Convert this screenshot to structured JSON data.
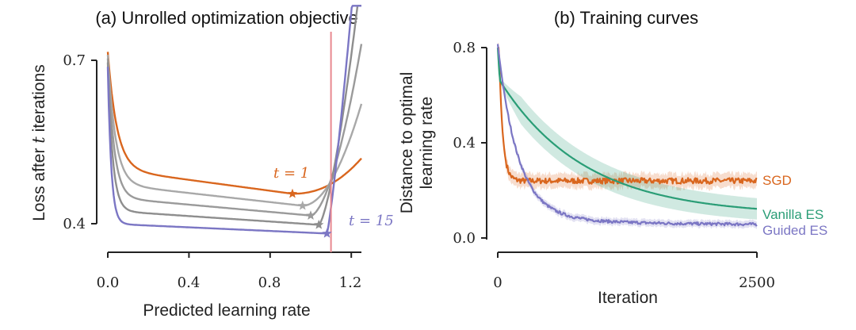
{
  "chart_data": [
    {
      "panel": "a",
      "type": "line",
      "title": "(a) Unrolled optimization objective",
      "xlabel": "Predicted learning rate",
      "ylabel_text": "Loss after ",
      "ylabel_var": "t",
      "ylabel_tail": " iterations",
      "xlim": [
        0.0,
        1.25
      ],
      "ylim": [
        0.36,
        0.7
      ],
      "xticks": [
        "0.0",
        "0.4",
        "0.8",
        "1.2"
      ],
      "yticks": [
        "0.4",
        "0.7"
      ],
      "vline_x": 1.1,
      "vline_color": "#e88890",
      "series": [
        {
          "label": "t = 1",
          "color": "#d9661e",
          "start": 0.67,
          "floor": 0.455,
          "min_x": 0.91,
          "end_y": 0.52
        },
        {
          "color": "#a8a8a8",
          "start": 0.67,
          "floor": 0.433,
          "min_x": 0.96,
          "end_y": 0.62
        },
        {
          "color": "#9a9a9a",
          "start": 0.67,
          "floor": 0.415,
          "min_x": 1.0,
          "end_y": 0.73
        },
        {
          "color": "#8e8e8e",
          "start": 0.67,
          "floor": 0.398,
          "min_x": 1.04,
          "end_y": 0.86
        },
        {
          "label": "t = 15",
          "color": "#7b76c4",
          "start": 0.67,
          "floor": 0.382,
          "min_x": 1.08,
          "end_y": 1.0
        }
      ]
    },
    {
      "panel": "b",
      "type": "line",
      "title": "(b) Training curves",
      "xlabel": "Iteration",
      "ylabel_line1": "Distance to optimal",
      "ylabel_line2": "learning rate",
      "xlim": [
        0,
        2500
      ],
      "ylim": [
        0.0,
        0.8
      ],
      "xticks": [
        "0",
        "2500"
      ],
      "yticks": [
        "0.0",
        "0.4",
        "0.8"
      ],
      "series": [
        {
          "name": "SGD",
          "color": "#d9661e",
          "final": 0.24,
          "band": 0.03
        },
        {
          "name": "Vanilla ES",
          "color": "#2a9d76",
          "final": 0.095,
          "band": 0.06
        },
        {
          "name": "Guided ES",
          "color": "#7b76c4",
          "final": 0.055,
          "band": 0.015
        }
      ]
    }
  ]
}
